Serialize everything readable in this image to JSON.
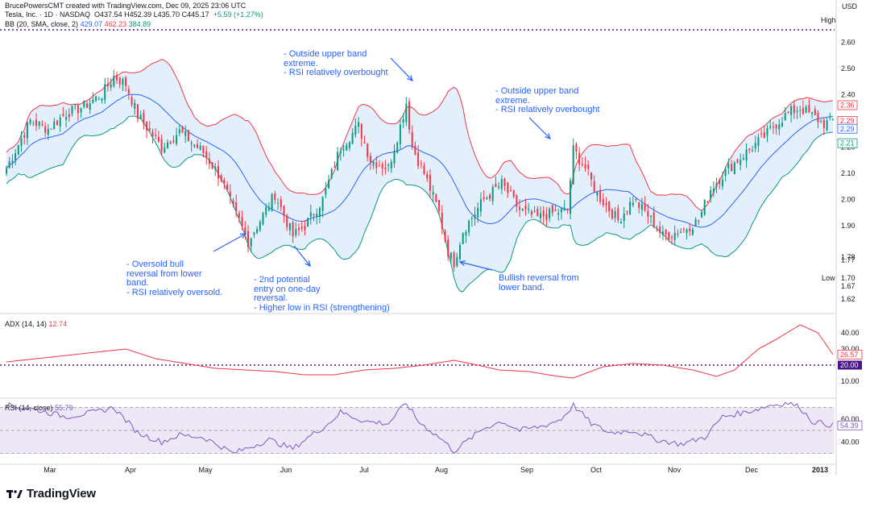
{
  "header": {
    "line1_prefix": "BrucePowersCMT created with TradingView.com, Dec 09, 2025 23:06 UTC",
    "line2": "Tesla, Inc. · 1D · NASDAQ",
    "ohlc": "O437.54  H452.39  L435.70  C445.17",
    "change": "+5.59 (+1.27%)"
  },
  "bb_legend": {
    "label": "BB (20, SMA, close, 2)",
    "basis": "429.07",
    "upper": "462.23",
    "lower": "384.89"
  },
  "adx_legend": {
    "label": "ADX (14, 14)",
    "value": "12.74"
  },
  "rsi_legend": {
    "label": "RSI (14, close)",
    "value": "55.79"
  },
  "price_axis": {
    "currency": "USD",
    "ticks": [
      "2.60",
      "2.50",
      "2.40",
      "2.20",
      "2.10",
      "2.00",
      "1.90",
      "1.78",
      "1.77",
      "1.67",
      "1.62"
    ],
    "tick_values": [
      2.6,
      2.5,
      2.4,
      2.2,
      2.1,
      2.0,
      1.9,
      1.78,
      1.77,
      1.67,
      1.62
    ],
    "high_label": "High",
    "low_label": "Low",
    "low_value": "1.70",
    "badges": [
      {
        "text": "2.36",
        "color": "#f23645",
        "value": 2.36
      },
      {
        "text": "2.29",
        "color": "#f23645",
        "value": 2.3
      },
      {
        "text": "2.29",
        "color": "#2962ff",
        "value": 2.27
      },
      {
        "text": "2.21",
        "color": "#089981",
        "value": 2.215
      }
    ]
  },
  "adx_axis": {
    "ticks": [
      "40.00",
      "30.00",
      "10.00"
    ],
    "tick_values": [
      40,
      30,
      10
    ],
    "badge_value": "26.57",
    "threshold_label": "20.00"
  },
  "rsi_axis": {
    "ticks": [
      "60.00",
      "40.00"
    ],
    "tick_values": [
      60,
      40
    ],
    "badge_value": "54.39"
  },
  "time_axis": {
    "labels": [
      "Mar",
      "Apr",
      "May",
      "Jun",
      "Jul",
      "Aug",
      "Sep",
      "Oct",
      "Nov",
      "Dec",
      "2013"
    ]
  },
  "annotations": [
    {
      "id": "a1",
      "text": "- Outside upper band\nextreme.\n- RSI relatively overbought"
    },
    {
      "id": "a2",
      "text": "- Outside upper band\nextreme.\n- RSI relatively overbought"
    },
    {
      "id": "a3",
      "text": "- Oversold bull\nreversal from lower\nband.\n- RSI relatively oversold."
    },
    {
      "id": "a4",
      "text": "- 2nd potential\nentry on one-day\nreversal.\n- Higher low in RSI (strengthening)"
    },
    {
      "id": "a5",
      "text": "Bullish reversal from\nlower band."
    }
  ],
  "brand": "TradingView",
  "colors": {
    "up": "#089981",
    "down": "#f23645",
    "basis": "#2962ff",
    "band_fill": "#e3f0fc",
    "rsi_line": "#7e57c2",
    "rsi_fill": "#ede7f6",
    "adx_line": "#f23645",
    "dotted": "#4a148c",
    "annotation": "#2962ff"
  },
  "chart_data": {
    "type": "candlestick",
    "title": "Tesla, Inc. · 1D · NASDAQ",
    "indicators": [
      "BB (20, SMA, close, 2)",
      "ADX (14, 14)",
      "RSI (14, close)"
    ],
    "x_months": [
      "Mar",
      "Apr",
      "May",
      "Jun",
      "Jul",
      "Aug",
      "Sep",
      "Oct",
      "Nov",
      "Dec",
      "2013"
    ],
    "ylim": [
      1.58,
      2.66
    ],
    "close_anchors": [
      [
        0,
        2.12
      ],
      [
        8,
        2.3
      ],
      [
        14,
        2.27
      ],
      [
        20,
        2.33
      ],
      [
        25,
        2.35
      ],
      [
        32,
        2.4
      ],
      [
        36,
        2.47
      ],
      [
        40,
        2.44
      ],
      [
        44,
        2.32
      ],
      [
        52,
        2.2
      ],
      [
        58,
        2.26
      ],
      [
        66,
        2.18
      ],
      [
        72,
        2.08
      ],
      [
        76,
        1.96
      ],
      [
        78,
        1.92
      ],
      [
        81,
        1.84
      ],
      [
        85,
        1.92
      ],
      [
        90,
        2.02
      ],
      [
        96,
        1.86
      ],
      [
        100,
        1.9
      ],
      [
        106,
        2.0
      ],
      [
        112,
        2.2
      ],
      [
        118,
        2.28
      ],
      [
        122,
        2.15
      ],
      [
        128,
        2.12
      ],
      [
        132,
        2.28
      ],
      [
        134,
        2.37
      ],
      [
        136,
        2.2
      ],
      [
        140,
        2.1
      ],
      [
        145,
        1.95
      ],
      [
        148,
        1.8
      ],
      [
        150,
        1.76
      ],
      [
        153,
        1.88
      ],
      [
        160,
        2.0
      ],
      [
        166,
        2.06
      ],
      [
        172,
        1.96
      ],
      [
        178,
        1.93
      ],
      [
        184,
        1.95
      ],
      [
        188,
        1.96
      ],
      [
        190,
        2.19
      ],
      [
        194,
        2.12
      ],
      [
        198,
        2.02
      ],
      [
        205,
        1.92
      ],
      [
        210,
        2.0
      ],
      [
        215,
        1.94
      ],
      [
        220,
        1.86
      ],
      [
        226,
        1.88
      ],
      [
        232,
        1.92
      ],
      [
        236,
        2.04
      ],
      [
        242,
        2.12
      ],
      [
        248,
        2.18
      ],
      [
        254,
        2.24
      ],
      [
        258,
        2.29
      ],
      [
        262,
        2.33
      ],
      [
        266,
        2.35
      ],
      [
        270,
        2.32
      ],
      [
        274,
        2.29
      ],
      [
        277,
        2.3
      ]
    ],
    "adx_anchors": [
      [
        0,
        22
      ],
      [
        20,
        26
      ],
      [
        30,
        28
      ],
      [
        40,
        30
      ],
      [
        50,
        24
      ],
      [
        60,
        21
      ],
      [
        70,
        18
      ],
      [
        80,
        17
      ],
      [
        90,
        16
      ],
      [
        100,
        14
      ],
      [
        110,
        14
      ],
      [
        120,
        17
      ],
      [
        130,
        18
      ],
      [
        140,
        20
      ],
      [
        150,
        23
      ],
      [
        158,
        20
      ],
      [
        165,
        17
      ],
      [
        175,
        16
      ],
      [
        185,
        13
      ],
      [
        190,
        12
      ],
      [
        200,
        19
      ],
      [
        210,
        21
      ],
      [
        220,
        20
      ],
      [
        230,
        17
      ],
      [
        238,
        13
      ],
      [
        244,
        17
      ],
      [
        252,
        30
      ],
      [
        258,
        36
      ],
      [
        266,
        45
      ],
      [
        272,
        40
      ],
      [
        277,
        26.57
      ]
    ],
    "rsi_anchors": [
      [
        0,
        72
      ],
      [
        10,
        68
      ],
      [
        20,
        62
      ],
      [
        30,
        66
      ],
      [
        36,
        70
      ],
      [
        44,
        48
      ],
      [
        52,
        40
      ],
      [
        58,
        46
      ],
      [
        66,
        44
      ],
      [
        72,
        36
      ],
      [
        76,
        30
      ],
      [
        82,
        36
      ],
      [
        88,
        42
      ],
      [
        92,
        38
      ],
      [
        96,
        34
      ],
      [
        100,
        42
      ],
      [
        108,
        56
      ],
      [
        112,
        66
      ],
      [
        120,
        58
      ],
      [
        128,
        56
      ],
      [
        132,
        68
      ],
      [
        134,
        74
      ],
      [
        138,
        58
      ],
      [
        146,
        42
      ],
      [
        150,
        32
      ],
      [
        154,
        40
      ],
      [
        160,
        52
      ],
      [
        166,
        58
      ],
      [
        172,
        50
      ],
      [
        180,
        54
      ],
      [
        186,
        60
      ],
      [
        190,
        72
      ],
      [
        196,
        56
      ],
      [
        202,
        48
      ],
      [
        210,
        50
      ],
      [
        218,
        42
      ],
      [
        226,
        38
      ],
      [
        234,
        44
      ],
      [
        240,
        62
      ],
      [
        248,
        66
      ],
      [
        256,
        72
      ],
      [
        262,
        74
      ],
      [
        266,
        70
      ],
      [
        270,
        58
      ],
      [
        277,
        54.39
      ]
    ],
    "rsi_band": [
      30,
      70
    ],
    "adx_threshold": 20
  }
}
